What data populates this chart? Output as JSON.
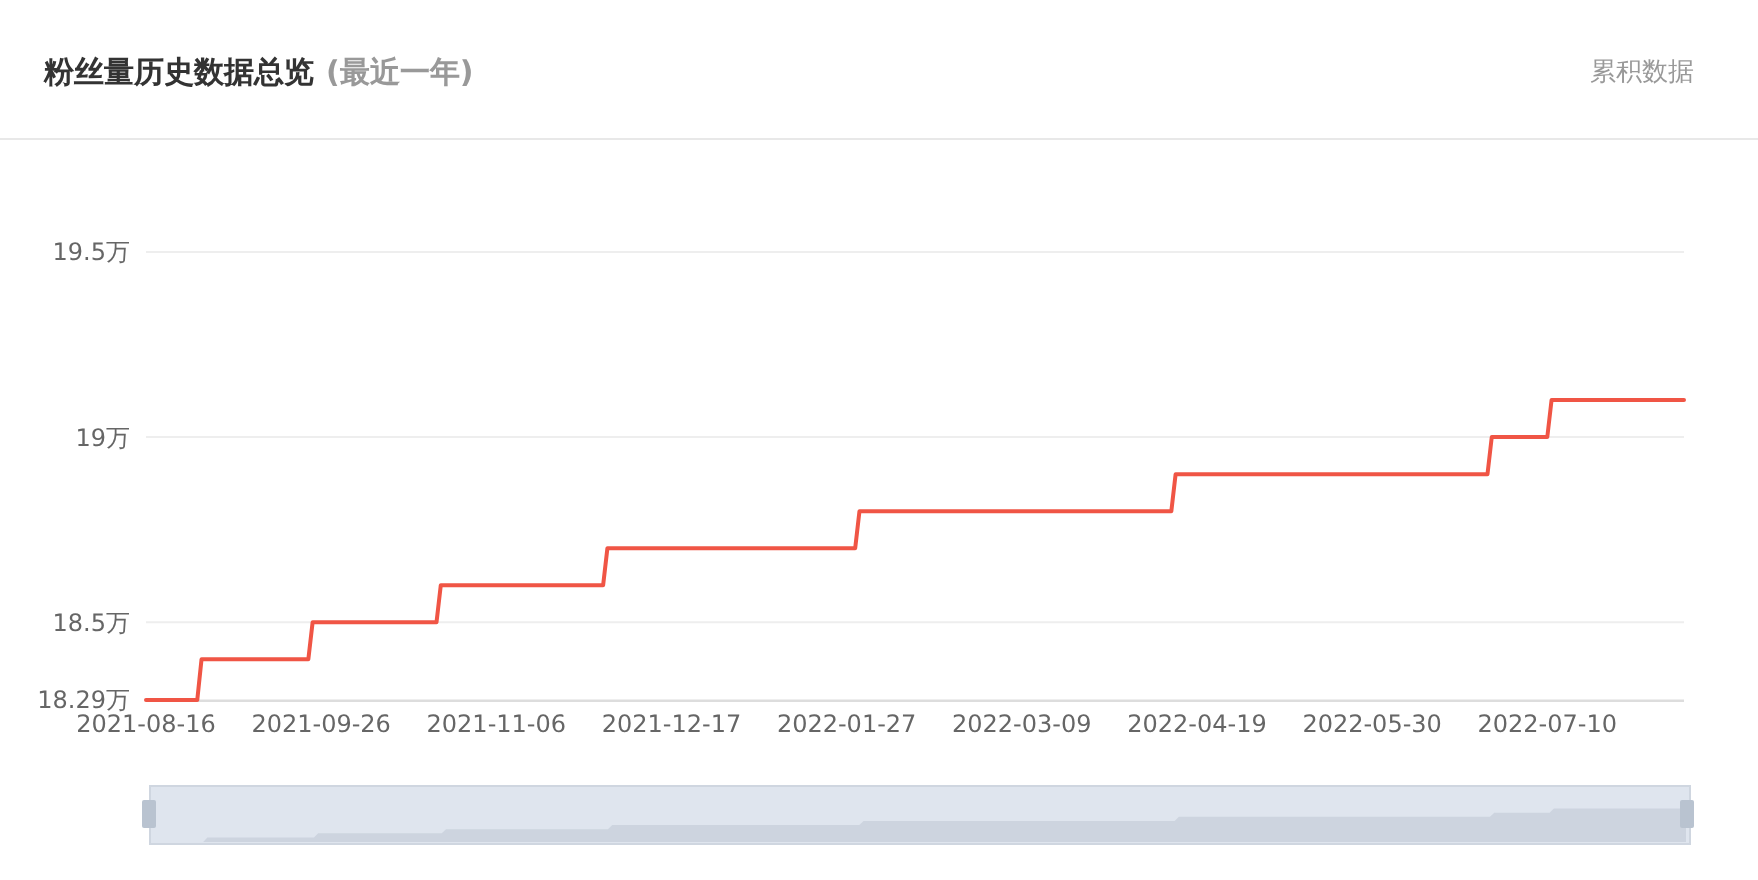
{
  "chart_data": {
    "type": "line",
    "title": "粉丝量历史数据总览",
    "subtitle": "(最近一年)",
    "annotations": [
      "累积数据"
    ],
    "x": [
      "2021-08-16",
      "2021-08-28",
      "2021-08-29",
      "2021-09-23",
      "2021-09-24",
      "2021-10-23",
      "2021-10-24",
      "2021-12-01",
      "2021-12-02",
      "2022-01-29",
      "2022-01-30",
      "2022-04-13",
      "2022-04-14",
      "2022-06-26",
      "2022-06-27",
      "2022-07-10",
      "2022-07-11",
      "2022-08-11"
    ],
    "series": [
      {
        "color": "#f05545",
        "values": [
          18.29,
          18.29,
          18.4,
          18.4,
          18.5,
          18.5,
          18.6,
          18.6,
          18.7,
          18.7,
          18.8,
          18.8,
          18.9,
          18.9,
          19.0,
          19.0,
          19.1,
          19.1
        ]
      }
    ],
    "xlim": [
      "2021-08-16",
      "2022-08-11"
    ],
    "xticks": [
      "2021-08-16",
      "2021-09-26",
      "2021-11-06",
      "2021-12-17",
      "2022-01-27",
      "2022-03-09",
      "2022-04-19",
      "2022-05-30",
      "2022-07-10"
    ],
    "ylim": [
      18.29,
      19.5
    ],
    "yticks": [
      {
        "value": 18.29,
        "label": "18.29万"
      },
      {
        "value": 18.5,
        "label": "18.5万"
      },
      {
        "value": 19,
        "label": "19万"
      },
      {
        "value": 19.5,
        "label": "19.5万"
      }
    ],
    "grid": "y",
    "marker": "none",
    "line_style": "solid"
  }
}
